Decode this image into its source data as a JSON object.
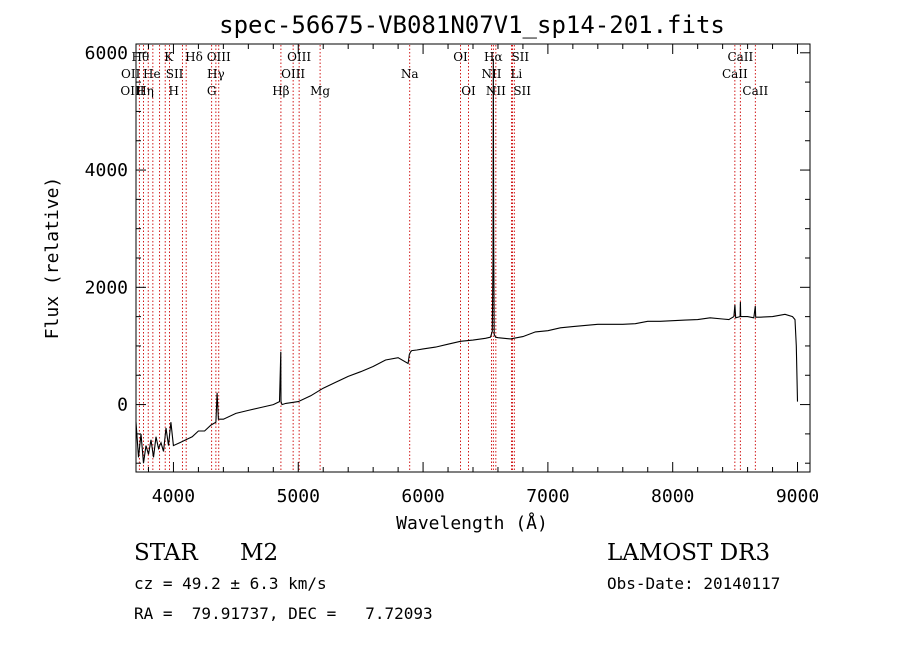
{
  "chart_data": {
    "type": "line",
    "title": "spec-56675-VB081N07V1_sp14-201.fits",
    "xlabel": "Wavelength (Å)",
    "ylabel": "Flux (relative)",
    "xlim": [
      3700,
      9100
    ],
    "ylim": [
      -1150,
      6150
    ],
    "xticks": [
      4000,
      5000,
      6000,
      7000,
      8000,
      9000
    ],
    "yticks": [
      0,
      2000,
      4000,
      6000
    ],
    "series": [
      {
        "name": "spectrum",
        "color": "#000000",
        "x": [
          3700,
          3720,
          3740,
          3760,
          3780,
          3800,
          3820,
          3840,
          3860,
          3880,
          3900,
          3920,
          3940,
          3960,
          3980,
          4000,
          4050,
          4100,
          4150,
          4200,
          4250,
          4300,
          4340,
          4350,
          4360,
          4400,
          4500,
          4600,
          4700,
          4800,
          4850,
          4860,
          4861,
          4862,
          4870,
          4900,
          5000,
          5100,
          5200,
          5300,
          5400,
          5500,
          5600,
          5700,
          5800,
          5880,
          5890,
          5900,
          5910,
          5950,
          6000,
          6100,
          6200,
          6300,
          6400,
          6500,
          6540,
          6555,
          6560,
          6563,
          6566,
          6570,
          6580,
          6600,
          6700,
          6800,
          6900,
          7000,
          7100,
          7200,
          7300,
          7400,
          7500,
          7600,
          7700,
          7800,
          7900,
          8000,
          8100,
          8200,
          8300,
          8400,
          8450,
          8490,
          8498,
          8505,
          8540,
          8542,
          8545,
          8600,
          8650,
          8662,
          8665,
          8700,
          8800,
          8900,
          8960,
          8980,
          8990,
          9000
        ],
        "y": [
          -300,
          -900,
          -500,
          -1000,
          -700,
          -850,
          -600,
          -900,
          -550,
          -750,
          -650,
          -800,
          -400,
          -700,
          -300,
          -700,
          -650,
          -600,
          -550,
          -450,
          -450,
          -350,
          -300,
          200,
          -250,
          -250,
          -150,
          -100,
          -50,
          0,
          50,
          900,
          300,
          50,
          0,
          20,
          50,
          150,
          280,
          380,
          480,
          560,
          650,
          760,
          800,
          700,
          850,
          900,
          920,
          930,
          950,
          980,
          1030,
          1080,
          1100,
          1130,
          1150,
          1250,
          2500,
          5900,
          2800,
          1200,
          1150,
          1140,
          1120,
          1160,
          1240,
          1260,
          1310,
          1330,
          1350,
          1370,
          1370,
          1370,
          1380,
          1420,
          1420,
          1430,
          1440,
          1450,
          1480,
          1460,
          1450,
          1500,
          1700,
          1480,
          1500,
          1750,
          1500,
          1500,
          1480,
          1680,
          1490,
          1490,
          1500,
          1540,
          1500,
          1450,
          1000,
          50
        ]
      }
    ],
    "lines": [
      {
        "name": "Hθ",
        "wavelength": 3798,
        "label_row": 0,
        "label_side": "left"
      },
      {
        "name": "OII",
        "wavelength": 3727,
        "label_row": 1,
        "label_side": "left"
      },
      {
        "name": "OIII",
        "wavelength": 3760,
        "label_row": 2,
        "label_side": "left"
      },
      {
        "name": "Hη",
        "wavelength": 3835,
        "label_row": 2,
        "label_side": "left"
      },
      {
        "name": "He",
        "wavelength": 3889,
        "label_row": 1,
        "label_side": "left"
      },
      {
        "name": "K",
        "wavelength": 3934,
        "label_row": 0,
        "label_side": "right"
      },
      {
        "name": "H",
        "wavelength": 3968,
        "label_row": 2,
        "label_side": "right"
      },
      {
        "name": "SII",
        "wavelength": 4072,
        "label_row": 1,
        "label_side": "left"
      },
      {
        "name": "Hδ",
        "wavelength": 4102,
        "label_row": 0,
        "label_side": "right"
      },
      {
        "name": "OIII",
        "wavelength": 4363,
        "label_row": 0,
        "label_side": "center"
      },
      {
        "name": "Hγ",
        "wavelength": 4340,
        "label_row": 1,
        "label_side": "center"
      },
      {
        "name": "G",
        "wavelength": 4306,
        "label_row": 2,
        "label_side": "center"
      },
      {
        "name": "Hβ",
        "wavelength": 4861,
        "label_row": 2,
        "label_side": "center"
      },
      {
        "name": "OIII",
        "wavelength": 4959,
        "label_row": 1,
        "label_side": "center"
      },
      {
        "name": "OIII",
        "wavelength": 5007,
        "label_row": 0,
        "label_side": "center"
      },
      {
        "name": "Mg",
        "wavelength": 5175,
        "label_row": 2,
        "label_side": "center"
      },
      {
        "name": "Na",
        "wavelength": 5893,
        "label_row": 1,
        "label_side": "center"
      },
      {
        "name": "OI",
        "wavelength": 6300,
        "label_row": 0,
        "label_side": "center"
      },
      {
        "name": "OI",
        "wavelength": 6364,
        "label_row": 2,
        "label_side": "center"
      },
      {
        "name": "NII",
        "wavelength": 6548,
        "label_row": 1,
        "label_side": "center"
      },
      {
        "name": "Hα",
        "wavelength": 6563,
        "label_row": 0,
        "label_side": "center"
      },
      {
        "name": "NII",
        "wavelength": 6583,
        "label_row": 2,
        "label_side": "center"
      },
      {
        "name": "Li",
        "wavelength": 6708,
        "label_row": 1,
        "label_side": "right"
      },
      {
        "name": "SII",
        "wavelength": 6716,
        "label_row": 0,
        "label_side": "right"
      },
      {
        "name": "SII",
        "wavelength": 6731,
        "label_row": 2,
        "label_side": "right"
      },
      {
        "name": "CaII",
        "wavelength": 8498,
        "label_row": 1,
        "label_side": "center"
      },
      {
        "name": "CaII",
        "wavelength": 8542,
        "label_row": 0,
        "label_side": "center"
      },
      {
        "name": "CaII",
        "wavelength": 8662,
        "label_row": 2,
        "label_side": "center"
      }
    ],
    "line_color": "#cc0000",
    "grid": false
  },
  "footer": {
    "class_label": "STAR",
    "subclass_label": "M2",
    "survey_label": "LAMOST DR3",
    "redshift_text": "cz = 49.2 ± 6.3 km/s",
    "obs_date_text": "Obs-Date: 20140117",
    "coords_text": "RA =  79.91737, DEC =   7.72093"
  }
}
